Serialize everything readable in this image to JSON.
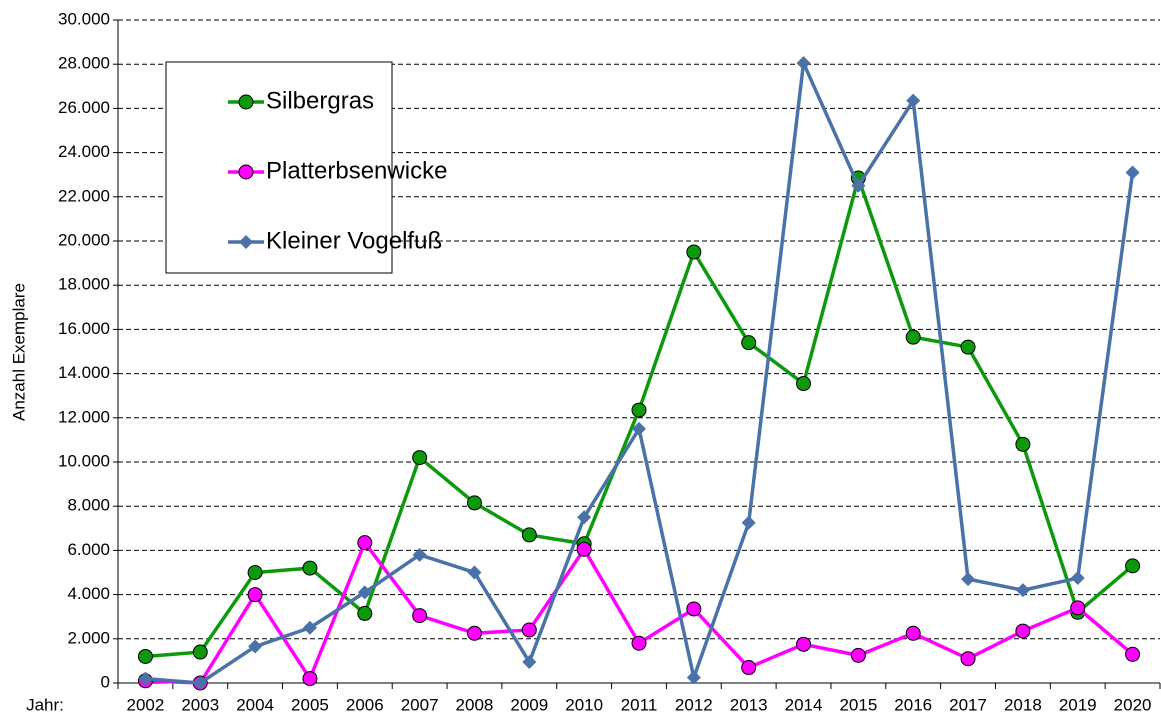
{
  "chart_data": {
    "type": "line",
    "x_label": "Jahr:",
    "y_label": "Anzahl Exemplare",
    "categories": [
      "2002",
      "2003",
      "2004",
      "2005",
      "2006",
      "2007",
      "2008",
      "2009",
      "2010",
      "2011",
      "2012",
      "2013",
      "2014",
      "2015",
      "2016",
      "2017",
      "2018",
      "2019",
      "2020"
    ],
    "series": [
      {
        "name": "Silbergras",
        "color": "#0c9a0c",
        "marker": "circle",
        "values": [
          1200,
          1400,
          5000,
          5200,
          3150,
          10200,
          8150,
          6700,
          6300,
          12350,
          19500,
          15400,
          13550,
          22850,
          15650,
          15200,
          10800,
          3200,
          5300
        ]
      },
      {
        "name": "Platterbsenwicke",
        "color": "#ff00ff",
        "marker": "circle",
        "values": [
          100,
          0,
          4000,
          200,
          6350,
          3050,
          2250,
          2400,
          6050,
          1800,
          3350,
          700,
          1750,
          1250,
          2250,
          1100,
          2350,
          3400,
          1300
        ]
      },
      {
        "name": "Kleiner Vogelfuß",
        "color": "#4a72a8",
        "marker": "diamond",
        "values": [
          200,
          0,
          1650,
          2500,
          4100,
          5800,
          5000,
          950,
          7500,
          11500,
          250,
          7250,
          28050,
          22500,
          26350,
          4700,
          4200,
          4750,
          23100
        ]
      }
    ],
    "ylim": [
      0,
      30000
    ],
    "yticks": [
      0,
      {
        "value": 2000,
        "label": "2.000"
      },
      {
        "value": 4000,
        "label": "4.000"
      },
      {
        "value": 6000,
        "label": "6.000"
      },
      {
        "value": 8000,
        "label": "8.000"
      },
      {
        "value": 10000,
        "label": "10.000"
      },
      {
        "value": 12000,
        "label": "12.000"
      },
      {
        "value": 14000,
        "label": "14.000"
      },
      {
        "value": 16000,
        "label": "16.000"
      },
      {
        "value": 18000,
        "label": "18.000"
      },
      {
        "value": 20000,
        "label": "20.000"
      },
      {
        "value": 22000,
        "label": "22.000"
      },
      {
        "value": 24000,
        "label": "24.000"
      },
      {
        "value": 26000,
        "label": "26.000"
      },
      {
        "value": 28000,
        "label": "28.000"
      },
      {
        "value": 30000,
        "label": "30.000"
      }
    ],
    "grid": true,
    "legend": "upper left"
  }
}
